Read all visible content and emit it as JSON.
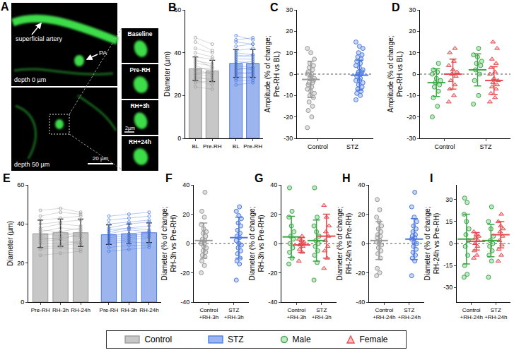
{
  "image_panel": {
    "panel": "A",
    "labels": {
      "artery": "superficial artery",
      "pa": "PA",
      "depth_top": "depth 0 µm",
      "depth_bottom": "depth 50 µm",
      "scale": "20 µm",
      "inset_scale": "2µm"
    },
    "insets": [
      "Baseline",
      "Pre-RH",
      "RH+3h",
      "RH+24h"
    ]
  },
  "chart_data": [
    {
      "panel": "B",
      "type": "bar",
      "y_label": "Diameter (µm)",
      "ylim": [
        0,
        60
      ],
      "yticks": [
        0,
        20,
        40,
        60
      ],
      "categories": [
        "BL",
        "Pre-RH",
        "BL",
        "Pre-RH"
      ],
      "series": [
        {
          "name": "Control",
          "color": "#999999",
          "values": [
            32.5,
            31.5,
            null,
            null
          ],
          "sd": [
            5.5,
            5,
            null,
            null
          ],
          "pairs": [
            [
              24,
              23
            ],
            [
              26,
              27
            ],
            [
              27,
              25
            ],
            [
              28,
              28
            ],
            [
              29,
              27
            ],
            [
              30,
              29
            ],
            [
              30,
              31
            ],
            [
              31,
              30
            ],
            [
              32,
              30
            ],
            [
              32,
              33
            ],
            [
              33,
              32
            ],
            [
              34,
              31
            ],
            [
              35,
              34
            ],
            [
              36,
              35
            ],
            [
              37,
              33
            ],
            [
              38,
              37
            ],
            [
              40,
              38
            ],
            [
              42,
              40
            ],
            [
              45,
              41
            ],
            [
              47,
              44
            ]
          ]
        },
        {
          "name": "STZ",
          "color": "#4a78e0",
          "values": [
            null,
            null,
            35,
            35
          ],
          "sd": [
            null,
            null,
            6.5,
            6.5
          ],
          "pairs": [
            [
              25,
              26
            ],
            [
              27,
              27
            ],
            [
              28,
              29
            ],
            [
              29,
              28
            ],
            [
              30,
              31
            ],
            [
              31,
              30
            ],
            [
              32,
              33
            ],
            [
              33,
              32
            ],
            [
              34,
              33
            ],
            [
              35,
              36
            ],
            [
              36,
              35
            ],
            [
              37,
              37
            ],
            [
              38,
              39
            ],
            [
              39,
              38
            ],
            [
              40,
              39
            ],
            [
              41,
              42
            ],
            [
              43,
              44
            ],
            [
              45,
              44
            ],
            [
              46,
              47
            ],
            [
              48,
              46
            ]
          ]
        }
      ]
    },
    {
      "panel": "C",
      "type": "scatter",
      "y_label": "Amplitude (% of change; Pre-RH vs BL)",
      "ylim": [
        -30,
        30
      ],
      "yticks": [
        -30,
        -20,
        -10,
        0,
        10,
        20,
        30
      ],
      "hline": 0,
      "categories": [
        "Control",
        "STZ"
      ],
      "series": [
        {
          "name": "Control",
          "color": "#999999",
          "marker": "circle",
          "values": [
            [
              -25,
              -20,
              -17,
              -15,
              -13,
              -11,
              -10,
              -9,
              -8,
              -7,
              -6,
              -5,
              -4,
              -4,
              -3,
              -2,
              -2,
              -1,
              0,
              0,
              1,
              2,
              3,
              4,
              5,
              7,
              10,
              12
            ],
            null
          ],
          "mean": [
            -2.5,
            null
          ],
          "sd": [
            8.5,
            null
          ]
        },
        {
          "name": "STZ",
          "color": "#4a78e0",
          "marker": "circle",
          "values": [
            null,
            [
              -12,
              -10,
              -9,
              -8,
              -7,
              -6,
              -5,
              -4,
              -3,
              -3,
              -2,
              -1,
              0,
              0,
              1,
              1,
              2,
              3,
              4,
              5,
              6,
              7,
              8,
              9,
              10,
              12,
              13,
              15
            ]
          ],
          "mean": [
            null,
            -0.5
          ],
          "sd": [
            null,
            7
          ]
        }
      ]
    },
    {
      "panel": "D",
      "type": "scatter",
      "y_label": "Amplitude (% of change; Pre-RH vs BL)",
      "ylim": [
        -30,
        30
      ],
      "yticks": [
        -30,
        -20,
        -10,
        0,
        10,
        20,
        30
      ],
      "hline": 0,
      "categories": [
        "Control",
        "STZ"
      ],
      "series": [
        {
          "name": "Male",
          "color": "#3aa845",
          "marker": "circle",
          "values": [
            [
              -20,
              -15,
              -11,
              -8,
              -6,
              -5,
              -4,
              -3,
              -2,
              0,
              1,
              2,
              5
            ],
            [
              -14,
              -10,
              -3,
              0,
              2,
              4,
              5,
              6,
              8,
              9,
              12
            ]
          ],
          "mean": [
            -4,
            2
          ],
          "sd": [
            6.5,
            7.5
          ]
        },
        {
          "name": "Female",
          "color": "#e5484d",
          "marker": "triangle",
          "values": [
            [
              -13,
              -10,
              -7,
              -5,
              -3,
              -1,
              0,
              1,
              2,
              4,
              6,
              10,
              12
            ],
            [
              -13,
              -11,
              -9,
              -7,
              -6,
              -5,
              -4,
              -3,
              -2,
              0,
              1,
              3,
              5,
              7,
              12,
              15
            ]
          ],
          "mean": [
            0,
            -3
          ],
          "sd": [
            7,
            6.5
          ]
        }
      ]
    },
    {
      "panel": "E",
      "type": "bar",
      "y_label": "Diameter (µm)",
      "ylim": [
        0,
        60
      ],
      "yticks": [
        0,
        20,
        40,
        60
      ],
      "categories": [
        "Pre-RH",
        "RH-3h",
        "RH-24h",
        "Pre-RH",
        "RH-3h",
        "RH-24h"
      ],
      "series": [
        {
          "name": "Control",
          "color": "#999999",
          "values": [
            35,
            35.5,
            35.5,
            null,
            null,
            null
          ],
          "sd": [
            7,
            7,
            7,
            null,
            null,
            null
          ],
          "pairs": [
            [
              24,
              25,
              26
            ],
            [
              27,
              28,
              27
            ],
            [
              28,
              29,
              30
            ],
            [
              30,
              30,
              31
            ],
            [
              31,
              32,
              30
            ],
            [
              32,
              33,
              34
            ],
            [
              33,
              32,
              35
            ],
            [
              34,
              36,
              33
            ],
            [
              35,
              34,
              36
            ],
            [
              36,
              38,
              37
            ],
            [
              37,
              36,
              38
            ],
            [
              38,
              40,
              39
            ],
            [
              40,
              41,
              42
            ],
            [
              42,
              43,
              44
            ],
            [
              44,
              46,
              45
            ],
            [
              47,
              48,
              46
            ]
          ]
        },
        {
          "name": "STZ",
          "color": "#4a78e0",
          "values": [
            null,
            null,
            null,
            34.5,
            35,
            35.5
          ],
          "sd": [
            null,
            null,
            null,
            5,
            5,
            5
          ],
          "pairs": [
            [
              26,
              27,
              28
            ],
            [
              28,
              29,
              29
            ],
            [
              30,
              31,
              30
            ],
            [
              31,
              32,
              33
            ],
            [
              32,
              33,
              34
            ],
            [
              33,
              34,
              35
            ],
            [
              34,
              35,
              36
            ],
            [
              35,
              37,
              36
            ],
            [
              36,
              38,
              37
            ],
            [
              37,
              38,
              39
            ],
            [
              38,
              40,
              41
            ],
            [
              40,
              41,
              42
            ],
            [
              42,
              43,
              44
            ],
            [
              44,
              45,
              46
            ]
          ]
        }
      ]
    },
    {
      "panel": "F",
      "type": "scatter",
      "y_label": "Diameter (% of change; RH-3h vs Pre-RH)",
      "ylim": [
        -40,
        40
      ],
      "yticks": [
        -40,
        -20,
        0,
        20,
        40
      ],
      "hline": 0,
      "categories": [
        "Control +RH-3h",
        "STZ +RH-3h"
      ],
      "series": [
        {
          "name": "Control",
          "color": "#999999",
          "marker": "circle",
          "values": [
            [
              -20,
              -15,
              -12,
              -9,
              -8,
              -6,
              -5,
              -3,
              -2,
              0,
              0,
              1,
              2,
              3,
              5,
              7,
              8,
              10,
              13,
              18,
              22,
              35
            ],
            null
          ],
          "mean": [
            2,
            null
          ],
          "sd": [
            12,
            null
          ]
        },
        {
          "name": "STZ",
          "color": "#4a78e0",
          "marker": "circle",
          "values": [
            null,
            [
              -25,
              -14,
              -12,
              -10,
              -7,
              -5,
              -3,
              -1,
              0,
              2,
              4,
              5,
              7,
              9,
              12,
              14,
              17,
              19,
              22,
              25
            ]
          ],
          "mean": [
            null,
            4
          ],
          "sd": [
            null,
            14
          ]
        }
      ]
    },
    {
      "panel": "G",
      "type": "scatter",
      "y_label": "Diameter (% of change; RH-3h vs Pre-RH)",
      "ylim": [
        -40,
        40
      ],
      "yticks": [
        -40,
        -20,
        0,
        20,
        40
      ],
      "hline": 0,
      "categories": [
        "Control +RH-3h",
        "STZ +RH-3h"
      ],
      "series": [
        {
          "name": "Male",
          "color": "#3aa845",
          "marker": "circle",
          "values": [
            [
              -14,
              -10,
              -6,
              -3,
              0,
              3,
              5,
              8,
              12,
              18,
              22,
              38
            ],
            [
              -25,
              -13,
              -8,
              -5,
              -2,
              0,
              2,
              5,
              8,
              12,
              18,
              38
            ]
          ],
          "mean": [
            4.5,
            2
          ],
          "sd": [
            14,
            14
          ]
        },
        {
          "name": "Female",
          "color": "#e5484d",
          "marker": "triangle",
          "values": [
            [
              -12,
              -6,
              -4,
              -2,
              -1,
              0,
              0,
              1,
              2,
              3,
              5
            ],
            [
              -17,
              -10,
              -5,
              -2,
              2,
              5,
              8,
              12,
              18,
              26
            ]
          ],
          "mean": [
            -1,
            5
          ],
          "sd": [
            5,
            15
          ]
        }
      ]
    },
    {
      "panel": "H",
      "type": "scatter",
      "y_label": "Diameter (% of change; RH-24h vs Pre-RH)",
      "ylim": [
        -40,
        40
      ],
      "yticks": [
        -40,
        -20,
        0,
        20,
        40
      ],
      "hline": 0,
      "categories": [
        "Control +RH-24h",
        "STZ +RH-24h"
      ],
      "series": [
        {
          "name": "Control",
          "color": "#999999",
          "marker": "circle",
          "values": [
            [
              -22,
              -20,
              -17,
              -10,
              -7,
              -5,
              -3,
              -1,
              0,
              1,
              2,
              4,
              5,
              6,
              8,
              10,
              12,
              15,
              18,
              23,
              30
            ],
            null
          ],
          "mean": [
            2,
            null
          ],
          "sd": [
            13,
            null
          ]
        },
        {
          "name": "STZ",
          "color": "#4a78e0",
          "marker": "circle",
          "values": [
            null,
            [
              -22,
              -12,
              -10,
              -8,
              -6,
              -4,
              -2,
              0,
              1,
              3,
              4,
              5,
              6,
              8,
              10,
              12,
              15,
              18,
              25,
              35
            ]
          ],
          "mean": [
            null,
            3
          ],
          "sd": [
            null,
            14
          ]
        }
      ]
    },
    {
      "panel": "I",
      "type": "scatter",
      "y_label": "Diameter (% of change; RH-24h vs Pre-RH)",
      "ylim": [
        -40,
        40
      ],
      "yticks": [
        -30,
        -15,
        0,
        15,
        30
      ],
      "hline": 0,
      "categories": [
        "Control +RH-24h",
        "STZ +RH-24h"
      ],
      "series": [
        {
          "name": "Male",
          "color": "#3aa845",
          "marker": "circle",
          "values": [
            [
              -23,
              -21,
              -15,
              -8,
              -2,
              2,
              6,
              10,
              15,
              20,
              28,
              31
            ],
            [
              -23,
              -12,
              -8,
              -5,
              -2,
              0,
              2,
              5,
              10,
              15,
              25
            ]
          ],
          "mean": [
            3,
            2
          ],
          "sd": [
            17,
            11
          ]
        },
        {
          "name": "Female",
          "color": "#e5484d",
          "marker": "triangle",
          "values": [
            [
              -10,
              -8,
              -5,
              -2,
              0,
              2,
              4,
              5,
              6,
              8
            ],
            [
              -12,
              -8,
              -4,
              -1,
              2,
              5,
              8,
              10,
              12,
              15,
              20
            ]
          ],
          "mean": [
            1.5,
            6
          ],
          "sd": [
            6,
            9
          ]
        }
      ]
    }
  ],
  "figure_legend": {
    "items": [
      {
        "name": "Control",
        "color": "#999999",
        "marker": "square"
      },
      {
        "name": "STZ",
        "color": "#4a78e0",
        "marker": "square"
      },
      {
        "name": "Male",
        "color": "#3aa845",
        "marker": "circle"
      },
      {
        "name": "Female",
        "color": "#e5484d",
        "marker": "triangle"
      }
    ]
  }
}
